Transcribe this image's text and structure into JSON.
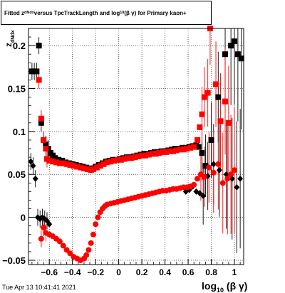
{
  "title": {
    "part1": "Fitted  z",
    "part1_sub": "dNdx",
    "part2": " versus TpcTrackLength and log",
    "part2_sub": "10",
    "part3": "(β γ) for Primary kaon+"
  },
  "footer": "Tue Apr 13 10:41:41 2021",
  "colors": {
    "series_black": "#000000",
    "series_red": "#ff0000",
    "grid": "#000000"
  },
  "chart_data": {
    "type": "scatter",
    "title": "Fitted z_dNdx versus TpcTrackLength and log10(β γ) for Primary kaon+",
    "xlabel": "log10 (β γ)",
    "ylabel": "z_dNdx",
    "xlim": [
      -0.78,
      1.08
    ],
    "ylim": [
      -0.055,
      0.22
    ],
    "grid": true,
    "xticks": [
      -0.6,
      -0.4,
      -0.2,
      0,
      0.2,
      0.4,
      0.6,
      0.8,
      1
    ],
    "xtick_labels": [
      "−0.6",
      "−0.4",
      "−0.2",
      "0",
      "0.2",
      "0.4",
      "0.6",
      "0.8",
      "1"
    ],
    "yticks": [
      -0.05,
      0,
      0.05,
      0.1,
      0.15,
      0.2
    ],
    "ytick_labels": [
      "−0.05",
      "0",
      "0.05",
      "0.1",
      "0.15",
      "0.2"
    ],
    "series": [
      {
        "color": "#000000",
        "marker_upper": "square",
        "marker_lower": "diamond",
        "upper": [
          [
            -0.75,
            0.17
          ],
          [
            -0.73,
            0.17
          ],
          [
            -0.71,
            0.17
          ],
          [
            -0.69,
            0.2
          ],
          [
            -0.67,
            0.11
          ],
          [
            -0.65,
            0.09
          ],
          [
            -0.63,
            0.085
          ],
          [
            -0.61,
            0.08
          ],
          [
            -0.59,
            0.075
          ],
          [
            -0.57,
            0.072
          ],
          [
            -0.55,
            0.069
          ],
          [
            -0.52,
            0.067
          ],
          [
            -0.49,
            0.066
          ],
          [
            -0.46,
            0.064
          ],
          [
            -0.43,
            0.063
          ],
          [
            -0.4,
            0.062
          ],
          [
            -0.37,
            0.061
          ],
          [
            -0.34,
            0.06
          ],
          [
            -0.31,
            0.059
          ],
          [
            -0.28,
            0.058
          ],
          [
            -0.25,
            0.057
          ],
          [
            -0.22,
            0.057
          ],
          [
            -0.2,
            0.059
          ],
          [
            -0.17,
            0.061
          ],
          [
            -0.14,
            0.063
          ],
          [
            -0.11,
            0.065
          ],
          [
            -0.08,
            0.066
          ],
          [
            -0.05,
            0.067
          ],
          [
            -0.02,
            0.067
          ],
          [
            0.01,
            0.068
          ],
          [
            0.04,
            0.069
          ],
          [
            0.07,
            0.07
          ],
          [
            0.1,
            0.07
          ],
          [
            0.13,
            0.071
          ],
          [
            0.16,
            0.072
          ],
          [
            0.19,
            0.073
          ],
          [
            0.22,
            0.074
          ],
          [
            0.25,
            0.074
          ],
          [
            0.28,
            0.075
          ],
          [
            0.31,
            0.076
          ],
          [
            0.34,
            0.076
          ],
          [
            0.37,
            0.077
          ],
          [
            0.4,
            0.077
          ],
          [
            0.43,
            0.078
          ],
          [
            0.46,
            0.079
          ],
          [
            0.49,
            0.08
          ],
          [
            0.52,
            0.08
          ],
          [
            0.55,
            0.081
          ],
          [
            0.58,
            0.081
          ],
          [
            0.61,
            0.082
          ],
          [
            0.64,
            0.083
          ],
          [
            0.67,
            0.084
          ],
          [
            0.69,
            0.082
          ],
          [
            0.72,
            0.075
          ],
          [
            0.75,
            0.06
          ],
          [
            0.8,
            0.09
          ],
          [
            0.86,
            0.14
          ],
          [
            0.92,
            0.19
          ],
          [
            0.97,
            0.2
          ],
          [
            1.0,
            0.205
          ],
          [
            1.03,
            0.19
          ],
          [
            1.06,
            0.185
          ]
        ],
        "lower": [
          [
            -0.76,
            0.065
          ],
          [
            -0.74,
            0.06
          ],
          [
            -0.72,
            0.045
          ],
          [
            -0.7,
            0.0
          ],
          [
            -0.68,
            -0.002
          ],
          [
            -0.66,
            0.0
          ],
          [
            -0.64,
            -0.002
          ],
          [
            -0.62,
            -0.004
          ],
          [
            -0.6,
            -0.008
          ],
          [
            0.58,
            0.03
          ],
          [
            0.61,
            0.032
          ],
          [
            0.64,
            0.036
          ],
          [
            0.67,
            0.03
          ],
          [
            0.7,
            0.028
          ],
          [
            0.73,
            0.025
          ],
          [
            0.77,
            0.048
          ],
          [
            0.82,
            0.062
          ],
          [
            0.87,
            0.055
          ],
          [
            0.93,
            0.05
          ],
          [
            0.98,
            0.045
          ],
          [
            1.02,
            0.035
          ],
          [
            1.05,
            0.045
          ]
        ]
      },
      {
        "color": "#ff0000",
        "marker_upper": "square",
        "marker_lower": "circle",
        "upper": [
          [
            -0.69,
            0.16
          ],
          [
            -0.67,
            0.115
          ],
          [
            -0.65,
            0.09
          ],
          [
            -0.63,
            0.08
          ],
          [
            -0.62,
            0.068
          ],
          [
            -0.6,
            0.066
          ],
          [
            -0.57,
            0.065
          ],
          [
            -0.54,
            0.064
          ],
          [
            -0.51,
            0.063
          ],
          [
            -0.48,
            0.063
          ],
          [
            -0.45,
            0.062
          ],
          [
            -0.42,
            0.061
          ],
          [
            -0.39,
            0.06
          ],
          [
            -0.36,
            0.059
          ],
          [
            -0.33,
            0.058
          ],
          [
            -0.3,
            0.057
          ],
          [
            -0.27,
            0.056
          ],
          [
            -0.24,
            0.055
          ],
          [
            -0.22,
            0.056
          ],
          [
            -0.19,
            0.058
          ],
          [
            -0.16,
            0.06
          ],
          [
            -0.13,
            0.062
          ],
          [
            -0.1,
            0.064
          ],
          [
            -0.07,
            0.065
          ],
          [
            -0.04,
            0.066
          ],
          [
            -0.01,
            0.067
          ],
          [
            0.02,
            0.067
          ],
          [
            0.05,
            0.068
          ],
          [
            0.08,
            0.069
          ],
          [
            0.11,
            0.069
          ],
          [
            0.14,
            0.07
          ],
          [
            0.17,
            0.071
          ],
          [
            0.2,
            0.072
          ],
          [
            0.23,
            0.072
          ],
          [
            0.26,
            0.073
          ],
          [
            0.29,
            0.074
          ],
          [
            0.32,
            0.074
          ],
          [
            0.35,
            0.075
          ],
          [
            0.38,
            0.076
          ],
          [
            0.41,
            0.076
          ],
          [
            0.44,
            0.077
          ],
          [
            0.47,
            0.077
          ],
          [
            0.5,
            0.078
          ],
          [
            0.53,
            0.079
          ],
          [
            0.56,
            0.079
          ],
          [
            0.59,
            0.08
          ],
          [
            0.62,
            0.081
          ],
          [
            0.65,
            0.082
          ],
          [
            0.68,
            0.09
          ],
          [
            0.7,
            0.105
          ],
          [
            0.72,
            0.12
          ],
          [
            0.74,
            0.14
          ],
          [
            0.77,
            0.145
          ],
          [
            0.79,
            0.22
          ],
          [
            0.84,
            0.155
          ],
          [
            0.88,
            0.112
          ],
          [
            0.92,
            0.135
          ],
          [
            0.95,
            0.11
          ]
        ],
        "lower": [
          [
            -0.67,
            -0.025
          ],
          [
            -0.65,
            -0.012
          ],
          [
            -0.63,
            -0.018
          ],
          [
            -0.6,
            -0.02
          ],
          [
            -0.57,
            -0.022
          ],
          [
            -0.54,
            -0.025
          ],
          [
            -0.51,
            -0.028
          ],
          [
            -0.48,
            -0.033
          ],
          [
            -0.45,
            -0.038
          ],
          [
            -0.42,
            -0.042
          ],
          [
            -0.39,
            -0.046
          ],
          [
            -0.36,
            -0.048
          ],
          [
            -0.33,
            -0.05
          ],
          [
            -0.3,
            -0.048
          ],
          [
            -0.28,
            -0.044
          ],
          [
            -0.26,
            -0.038
          ],
          [
            -0.24,
            -0.03
          ],
          [
            -0.22,
            -0.02
          ],
          [
            -0.2,
            -0.008
          ],
          [
            -0.18,
            0.0
          ],
          [
            -0.16,
            0.006
          ],
          [
            -0.14,
            0.01
          ],
          [
            -0.12,
            0.013
          ],
          [
            -0.1,
            0.015
          ],
          [
            -0.07,
            0.016
          ],
          [
            -0.04,
            0.017
          ],
          [
            -0.01,
            0.018
          ],
          [
            0.02,
            0.019
          ],
          [
            0.05,
            0.02
          ],
          [
            0.08,
            0.021
          ],
          [
            0.11,
            0.022
          ],
          [
            0.14,
            0.023
          ],
          [
            0.17,
            0.024
          ],
          [
            0.2,
            0.025
          ],
          [
            0.23,
            0.026
          ],
          [
            0.26,
            0.027
          ],
          [
            0.29,
            0.028
          ],
          [
            0.32,
            0.029
          ],
          [
            0.35,
            0.03
          ],
          [
            0.38,
            0.031
          ],
          [
            0.41,
            0.031
          ],
          [
            0.44,
            0.032
          ],
          [
            0.47,
            0.033
          ],
          [
            0.5,
            0.033
          ],
          [
            0.53,
            0.034
          ],
          [
            0.56,
            0.035
          ],
          [
            0.59,
            0.035
          ],
          [
            0.62,
            0.036
          ],
          [
            0.65,
            0.038
          ],
          [
            0.68,
            0.045
          ],
          [
            0.71,
            0.05
          ],
          [
            0.74,
            0.047
          ],
          [
            0.78,
            0.058
          ],
          [
            0.82,
            0.052
          ],
          [
            0.86,
            0.062
          ],
          [
            0.9,
            0.04
          ],
          [
            0.94,
            0.045
          ],
          [
            0.97,
            0.05
          ],
          [
            1.0,
            0.055
          ]
        ]
      }
    ]
  }
}
